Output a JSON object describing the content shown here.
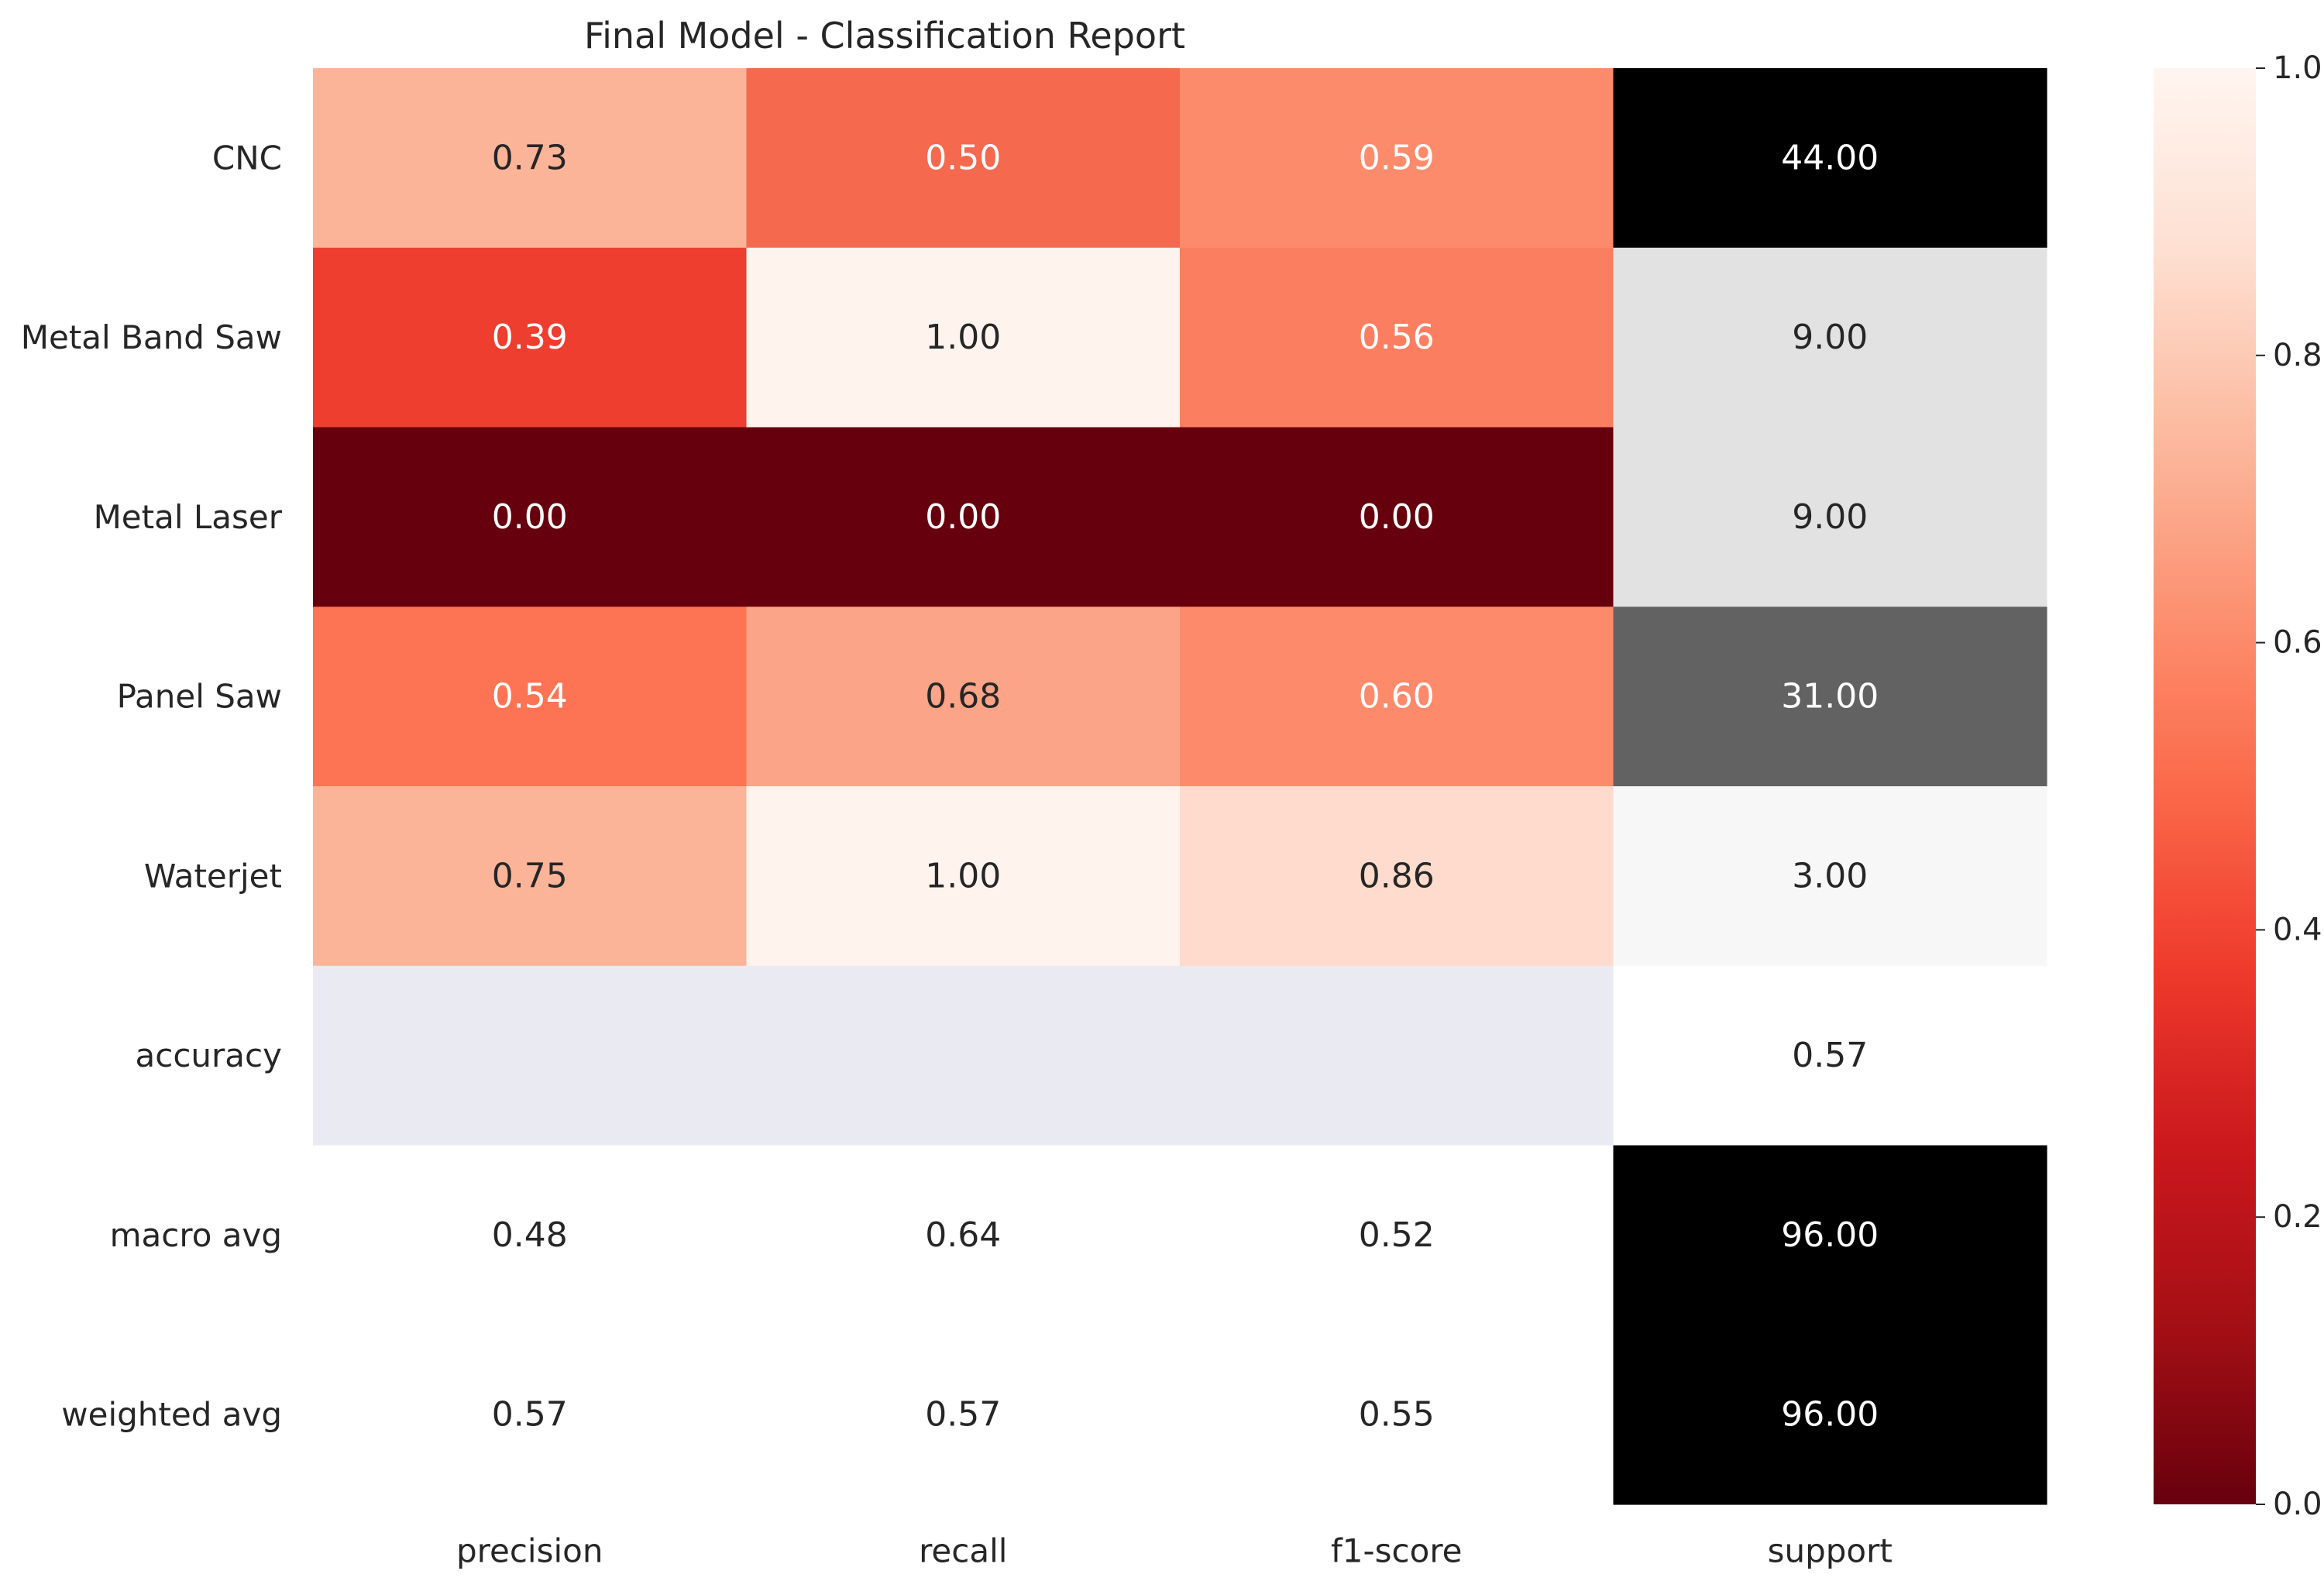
{
  "chart_data": {
    "type": "heatmap",
    "title": "Final Model - Classification Report",
    "rows": [
      "CNC",
      "Metal Band Saw",
      "Metal Laser",
      "Panel Saw",
      "Waterjet",
      "accuracy",
      "macro avg",
      "weighted avg"
    ],
    "columns": [
      "precision",
      "recall",
      "f1-score",
      "support"
    ],
    "values": [
      [
        0.73,
        0.5,
        0.59,
        44.0
      ],
      [
        0.39,
        1.0,
        0.56,
        9.0
      ],
      [
        0.0,
        0.0,
        0.0,
        9.0
      ],
      [
        0.54,
        0.68,
        0.6,
        31.0
      ],
      [
        0.75,
        1.0,
        0.86,
        3.0
      ],
      [
        null,
        null,
        null,
        0.57
      ],
      [
        0.48,
        0.64,
        0.52,
        96.0
      ],
      [
        0.57,
        0.57,
        0.55,
        96.0
      ]
    ],
    "cell_labels": [
      [
        "0.73",
        "0.50",
        "0.59",
        "44.00"
      ],
      [
        "0.39",
        "1.00",
        "0.56",
        "9.00"
      ],
      [
        "0.00",
        "0.00",
        "0.00",
        "9.00"
      ],
      [
        "0.54",
        "0.68",
        "0.60",
        "31.00"
      ],
      [
        "0.75",
        "1.00",
        "0.86",
        "3.00"
      ],
      [
        "",
        "",
        "",
        "0.57"
      ],
      [
        "0.48",
        "0.64",
        "0.52",
        "96.00"
      ],
      [
        "0.57",
        "0.57",
        "0.55",
        "96.00"
      ]
    ],
    "cell_colors": [
      [
        "#fcb499",
        "#f5694f",
        "#fc8b6c",
        "#000000"
      ],
      [
        "#ee3e2f",
        "#fff3ee",
        "#fc7e60",
        "#e2e2e2"
      ],
      [
        "#67000d",
        "#67000d",
        "#67000d",
        "#e2e2e2"
      ],
      [
        "#fc7454",
        "#fca487",
        "#fc8a6b",
        "#626262"
      ],
      [
        "#fcb499",
        "#fff3ee",
        "#fedbcd",
        "#f7f7f7"
      ],
      [
        "#eaeaf2",
        "#eaeaf2",
        "#eaeaf2",
        "#ffffff"
      ],
      [
        "#ffffff",
        "#ffffff",
        "#ffffff",
        "#000000"
      ],
      [
        "#ffffff",
        "#ffffff",
        "#ffffff",
        "#000000"
      ]
    ],
    "label_colors": [
      [
        "#262626",
        "#ffffff",
        "#ffffff",
        "#ffffff"
      ],
      [
        "#ffffff",
        "#262626",
        "#ffffff",
        "#262626"
      ],
      [
        "#ffffff",
        "#ffffff",
        "#ffffff",
        "#262626"
      ],
      [
        "#ffffff",
        "#262626",
        "#ffffff",
        "#ffffff"
      ],
      [
        "#262626",
        "#262626",
        "#262626",
        "#262626"
      ],
      [
        "#262626",
        "#262626",
        "#262626",
        "#262626"
      ],
      [
        "#262626",
        "#262626",
        "#262626",
        "#ffffff"
      ],
      [
        "#262626",
        "#262626",
        "#262626",
        "#ffffff"
      ]
    ],
    "colorbar": {
      "colormap": "Reds_r",
      "range": [
        0.0,
        1.0
      ],
      "ticks": [
        "0.0",
        "0.2",
        "0.4",
        "0.6",
        "0.8",
        "1.0"
      ],
      "gradient": [
        "#67000d",
        "#a50f15",
        "#cb181d",
        "#ef3b2c",
        "#fb6a4a",
        "#fc9272",
        "#fcbba1",
        "#fee0d2",
        "#fff5f0"
      ]
    },
    "xlabel": "",
    "ylabel": ""
  }
}
